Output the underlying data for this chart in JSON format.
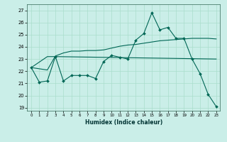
{
  "xlabel": "Humidex (Indice chaleur)",
  "bg_color": "#caeee8",
  "grid_color": "#aaddcc",
  "line_color": "#006655",
  "xlim": [
    -0.5,
    23.5
  ],
  "ylim": [
    18.75,
    27.5
  ],
  "yticks": [
    19,
    20,
    21,
    22,
    23,
    24,
    25,
    26,
    27
  ],
  "xticks": [
    0,
    1,
    2,
    3,
    4,
    5,
    6,
    7,
    8,
    9,
    10,
    11,
    12,
    13,
    14,
    15,
    16,
    17,
    18,
    19,
    20,
    21,
    22,
    23
  ],
  "line1_x": [
    0,
    1,
    2,
    3,
    4,
    5,
    6,
    7,
    8,
    9,
    10,
    11,
    12,
    13,
    14,
    15,
    16,
    17,
    18,
    19,
    20,
    21,
    22,
    23
  ],
  "line1_y": [
    22.3,
    21.1,
    21.2,
    23.2,
    21.2,
    21.65,
    21.65,
    21.65,
    21.4,
    22.8,
    23.3,
    23.15,
    23.0,
    24.55,
    25.1,
    26.8,
    25.4,
    25.6,
    24.7,
    24.7,
    23.0,
    21.8,
    20.1,
    19.1
  ],
  "line2_x": [
    0,
    2,
    3,
    23
  ],
  "line2_y": [
    22.3,
    23.2,
    23.2,
    23.0
  ],
  "line3_x": [
    0,
    2,
    3,
    4,
    5,
    6,
    7,
    8,
    9,
    10,
    11,
    12,
    13,
    14,
    15,
    16,
    17,
    18,
    19,
    20,
    21,
    22,
    23
  ],
  "line3_y": [
    22.3,
    22.1,
    23.25,
    23.5,
    23.65,
    23.65,
    23.7,
    23.7,
    23.75,
    23.9,
    24.05,
    24.15,
    24.2,
    24.3,
    24.4,
    24.5,
    24.55,
    24.6,
    24.65,
    24.7,
    24.7,
    24.7,
    24.65
  ]
}
